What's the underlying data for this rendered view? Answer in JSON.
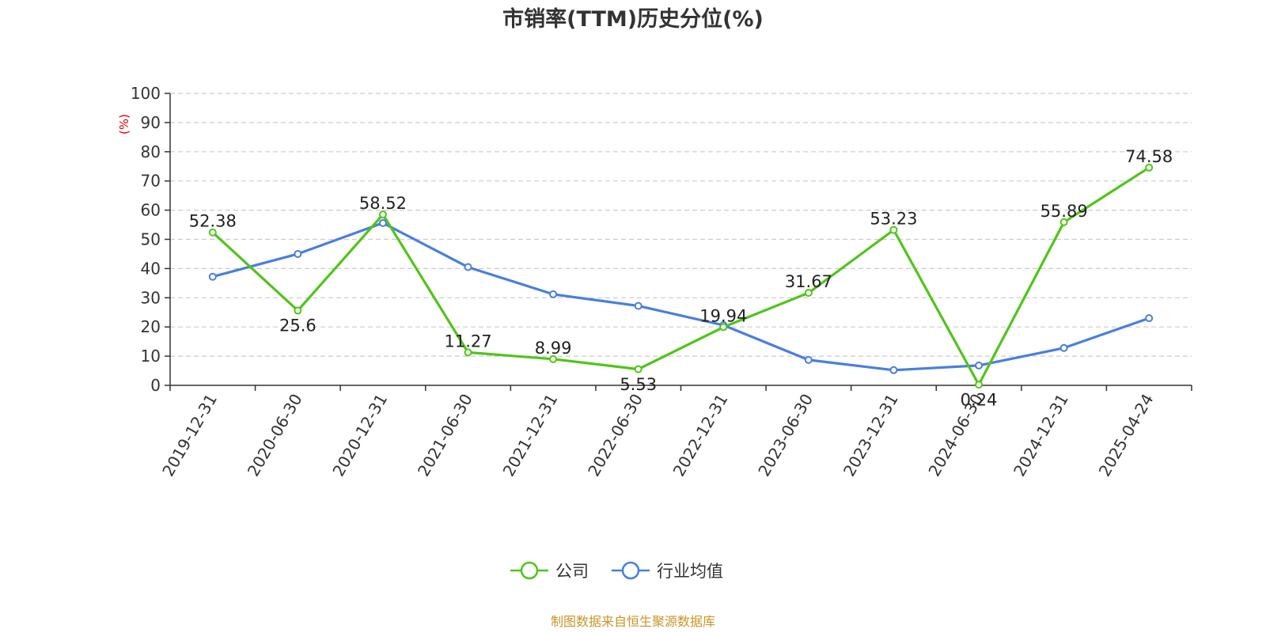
{
  "chart_data": {
    "type": "line",
    "title": "市销率(TTM)历史分位(%)",
    "ylabel": "(%)",
    "ylim": [
      0,
      100
    ],
    "yticks": [
      0,
      10,
      20,
      30,
      40,
      50,
      60,
      70,
      80,
      90,
      100
    ],
    "grid": true,
    "legend_position": "bottom",
    "categories": [
      "2019-12-31",
      "2020-06-30",
      "2020-12-31",
      "2021-06-30",
      "2021-12-31",
      "2022-06-30",
      "2022-12-31",
      "2023-06-30",
      "2023-12-31",
      "2024-06-30",
      "2024-12-31",
      "2025-04-24"
    ],
    "series": [
      {
        "name": "公司",
        "color": "#52c41a",
        "values": [
          52.38,
          25.6,
          58.52,
          11.27,
          8.99,
          5.53,
          19.94,
          31.67,
          53.23,
          0.24,
          55.89,
          74.58
        ],
        "labels": [
          "52.38",
          "25.6",
          "58.52",
          "11.27",
          "8.99",
          "5.53",
          "19.94",
          "31.67",
          "53.23",
          "0.24",
          "55.89",
          "74.58"
        ]
      },
      {
        "name": "行业均值",
        "color": "#4a7fdb",
        "values": [
          37.2,
          45.0,
          55.6,
          40.5,
          31.2,
          27.2,
          20.6,
          8.7,
          5.2,
          6.8,
          12.8,
          23.0
        ]
      }
    ],
    "source": "制图数据来自恒生聚源数据库",
    "colors": {
      "unit": "#e00000",
      "source": "#c8962a",
      "axis": "#333333",
      "grid": "#cccccc"
    }
  }
}
